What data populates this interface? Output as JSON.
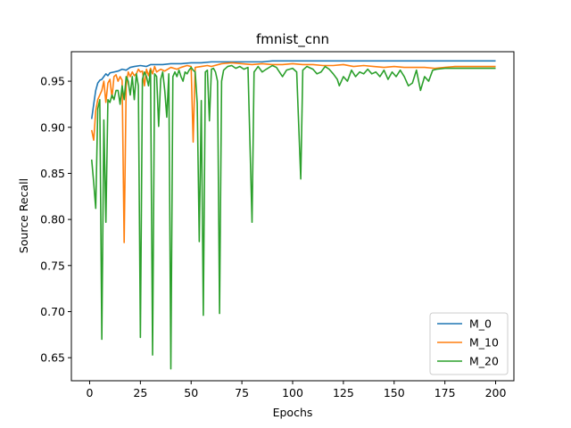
{
  "chart_data": {
    "type": "line",
    "title": "fmnist_cnn",
    "xlabel": "Epochs",
    "ylabel": "Source Recall",
    "xlim": [
      -9,
      209
    ],
    "ylim": [
      0.625,
      0.982
    ],
    "xticks": [
      0,
      25,
      50,
      75,
      100,
      125,
      150,
      175,
      200
    ],
    "yticks": [
      0.65,
      0.7,
      0.75,
      0.8,
      0.85,
      0.9,
      0.95
    ],
    "xtick_labels": [
      "0",
      "25",
      "50",
      "75",
      "100",
      "125",
      "150",
      "175",
      "200"
    ],
    "ytick_labels": [
      "0.65",
      "0.70",
      "0.75",
      "0.80",
      "0.85",
      "0.90",
      "0.95"
    ],
    "legend_position": "lower-right",
    "grid": false,
    "series": [
      {
        "name": "M_0",
        "color": "#1f77b4",
        "points": [
          [
            1,
            0.909
          ],
          [
            2,
            0.925
          ],
          [
            3,
            0.94
          ],
          [
            4,
            0.948
          ],
          [
            5,
            0.951
          ],
          [
            6,
            0.952
          ],
          [
            7,
            0.955
          ],
          [
            8,
            0.958
          ],
          [
            9,
            0.956
          ],
          [
            10,
            0.959
          ],
          [
            12,
            0.96
          ],
          [
            14,
            0.961
          ],
          [
            16,
            0.963
          ],
          [
            18,
            0.962
          ],
          [
            20,
            0.965
          ],
          [
            22,
            0.966
          ],
          [
            25,
            0.967
          ],
          [
            28,
            0.966
          ],
          [
            30,
            0.968
          ],
          [
            33,
            0.968
          ],
          [
            36,
            0.968
          ],
          [
            40,
            0.969
          ],
          [
            45,
            0.969
          ],
          [
            50,
            0.97
          ],
          [
            55,
            0.97
          ],
          [
            60,
            0.971
          ],
          [
            65,
            0.971
          ],
          [
            70,
            0.971
          ],
          [
            75,
            0.971
          ],
          [
            80,
            0.971
          ],
          [
            85,
            0.971
          ],
          [
            90,
            0.972
          ],
          [
            95,
            0.972
          ],
          [
            100,
            0.972
          ],
          [
            110,
            0.972
          ],
          [
            120,
            0.972
          ],
          [
            130,
            0.972
          ],
          [
            140,
            0.972
          ],
          [
            150,
            0.972
          ],
          [
            160,
            0.972
          ],
          [
            170,
            0.972
          ],
          [
            180,
            0.972
          ],
          [
            190,
            0.972
          ],
          [
            200,
            0.972
          ]
        ]
      },
      {
        "name": "M_10",
        "color": "#ff7f0e",
        "points": [
          [
            1,
            0.897
          ],
          [
            2,
            0.886
          ],
          [
            3,
            0.918
          ],
          [
            4,
            0.93
          ],
          [
            5,
            0.935
          ],
          [
            6,
            0.94
          ],
          [
            7,
            0.95
          ],
          [
            8,
            0.927
          ],
          [
            9,
            0.948
          ],
          [
            10,
            0.952
          ],
          [
            11,
            0.932
          ],
          [
            12,
            0.955
          ],
          [
            13,
            0.957
          ],
          [
            14,
            0.95
          ],
          [
            15,
            0.955
          ],
          [
            16,
            0.951
          ],
          [
            17,
            0.775
          ],
          [
            18,
            0.945
          ],
          [
            19,
            0.96
          ],
          [
            20,
            0.955
          ],
          [
            21,
            0.96
          ],
          [
            22,
            0.956
          ],
          [
            23,
            0.958
          ],
          [
            24,
            0.963
          ],
          [
            25,
            0.96
          ],
          [
            26,
            0.961
          ],
          [
            27,
            0.945
          ],
          [
            28,
            0.963
          ],
          [
            29,
            0.956
          ],
          [
            30,
            0.964
          ],
          [
            31,
            0.958
          ],
          [
            32,
            0.966
          ],
          [
            33,
            0.96
          ],
          [
            35,
            0.963
          ],
          [
            37,
            0.961
          ],
          [
            40,
            0.965
          ],
          [
            43,
            0.963
          ],
          [
            45,
            0.965
          ],
          [
            48,
            0.967
          ],
          [
            50,
            0.966
          ],
          [
            51,
            0.884
          ],
          [
            52,
            0.965
          ],
          [
            55,
            0.966
          ],
          [
            58,
            0.967
          ],
          [
            60,
            0.966
          ],
          [
            65,
            0.969
          ],
          [
            70,
            0.97
          ],
          [
            75,
            0.969
          ],
          [
            80,
            0.968
          ],
          [
            85,
            0.969
          ],
          [
            90,
            0.968
          ],
          [
            95,
            0.968
          ],
          [
            100,
            0.969
          ],
          [
            105,
            0.968
          ],
          [
            110,
            0.968
          ],
          [
            115,
            0.967
          ],
          [
            120,
            0.967
          ],
          [
            125,
            0.968
          ],
          [
            130,
            0.966
          ],
          [
            135,
            0.967
          ],
          [
            140,
            0.966
          ],
          [
            145,
            0.965
          ],
          [
            150,
            0.966
          ],
          [
            155,
            0.965
          ],
          [
            160,
            0.965
          ],
          [
            165,
            0.965
          ],
          [
            170,
            0.964
          ],
          [
            175,
            0.965
          ],
          [
            180,
            0.966
          ],
          [
            185,
            0.966
          ],
          [
            190,
            0.966
          ],
          [
            195,
            0.966
          ],
          [
            200,
            0.966
          ]
        ]
      },
      {
        "name": "M_20",
        "color": "#2ca02c",
        "points": [
          [
            1,
            0.865
          ],
          [
            2,
            0.84
          ],
          [
            3,
            0.812
          ],
          [
            4,
            0.92
          ],
          [
            5,
            0.93
          ],
          [
            6,
            0.67
          ],
          [
            7,
            0.908
          ],
          [
            8,
            0.797
          ],
          [
            9,
            0.93
          ],
          [
            10,
            0.927
          ],
          [
            11,
            0.935
          ],
          [
            12,
            0.93
          ],
          [
            13,
            0.94
          ],
          [
            14,
            0.94
          ],
          [
            15,
            0.925
          ],
          [
            16,
            0.945
          ],
          [
            17,
            0.93
          ],
          [
            18,
            0.955
          ],
          [
            19,
            0.95
          ],
          [
            20,
            0.935
          ],
          [
            21,
            0.955
          ],
          [
            22,
            0.93
          ],
          [
            23,
            0.958
          ],
          [
            24,
            0.945
          ],
          [
            25,
            0.672
          ],
          [
            26,
            0.952
          ],
          [
            27,
            0.96
          ],
          [
            28,
            0.955
          ],
          [
            29,
            0.945
          ],
          [
            30,
            0.962
          ],
          [
            31,
            0.653
          ],
          [
            32,
            0.958
          ],
          [
            33,
            0.955
          ],
          [
            34,
            0.901
          ],
          [
            35,
            0.952
          ],
          [
            36,
            0.96
          ],
          [
            37,
            0.94
          ],
          [
            38,
            0.911
          ],
          [
            39,
            0.958
          ],
          [
            40,
            0.638
          ],
          [
            41,
            0.955
          ],
          [
            42,
            0.96
          ],
          [
            43,
            0.955
          ],
          [
            44,
            0.962
          ],
          [
            45,
            0.955
          ],
          [
            46,
            0.95
          ],
          [
            47,
            0.96
          ],
          [
            48,
            0.958
          ],
          [
            49,
            0.962
          ],
          [
            50,
            0.965
          ],
          [
            51,
            0.962
          ],
          [
            52,
            0.96
          ],
          [
            53,
            0.926
          ],
          [
            54,
            0.776
          ],
          [
            55,
            0.929
          ],
          [
            56,
            0.696
          ],
          [
            57,
            0.96
          ],
          [
            58,
            0.962
          ],
          [
            59,
            0.907
          ],
          [
            60,
            0.963
          ],
          [
            61,
            0.964
          ],
          [
            62,
            0.96
          ],
          [
            63,
            0.95
          ],
          [
            64,
            0.698
          ],
          [
            65,
            0.95
          ],
          [
            66,
            0.962
          ],
          [
            68,
            0.966
          ],
          [
            70,
            0.967
          ],
          [
            72,
            0.964
          ],
          [
            74,
            0.966
          ],
          [
            76,
            0.963
          ],
          [
            78,
            0.965
          ],
          [
            80,
            0.797
          ],
          [
            81,
            0.96
          ],
          [
            83,
            0.966
          ],
          [
            85,
            0.96
          ],
          [
            87,
            0.963
          ],
          [
            90,
            0.967
          ],
          [
            92,
            0.965
          ],
          [
            95,
            0.955
          ],
          [
            97,
            0.962
          ],
          [
            100,
            0.964
          ],
          [
            102,
            0.96
          ],
          [
            104,
            0.844
          ],
          [
            105,
            0.962
          ],
          [
            107,
            0.966
          ],
          [
            110,
            0.963
          ],
          [
            112,
            0.958
          ],
          [
            114,
            0.96
          ],
          [
            116,
            0.966
          ],
          [
            118,
            0.963
          ],
          [
            120,
            0.958
          ],
          [
            122,
            0.952
          ],
          [
            123,
            0.945
          ],
          [
            125,
            0.955
          ],
          [
            127,
            0.95
          ],
          [
            129,
            0.962
          ],
          [
            131,
            0.955
          ],
          [
            133,
            0.96
          ],
          [
            135,
            0.958
          ],
          [
            137,
            0.963
          ],
          [
            139,
            0.958
          ],
          [
            141,
            0.96
          ],
          [
            143,
            0.955
          ],
          [
            145,
            0.962
          ],
          [
            147,
            0.952
          ],
          [
            149,
            0.96
          ],
          [
            151,
            0.955
          ],
          [
            153,
            0.962
          ],
          [
            155,
            0.955
          ],
          [
            157,
            0.945
          ],
          [
            159,
            0.948
          ],
          [
            161,
            0.962
          ],
          [
            163,
            0.94
          ],
          [
            165,
            0.955
          ],
          [
            167,
            0.95
          ],
          [
            169,
            0.962
          ],
          [
            171,
            0.963
          ],
          [
            175,
            0.964
          ],
          [
            180,
            0.964
          ],
          [
            185,
            0.964
          ],
          [
            190,
            0.964
          ],
          [
            195,
            0.964
          ],
          [
            200,
            0.964
          ]
        ]
      }
    ]
  }
}
